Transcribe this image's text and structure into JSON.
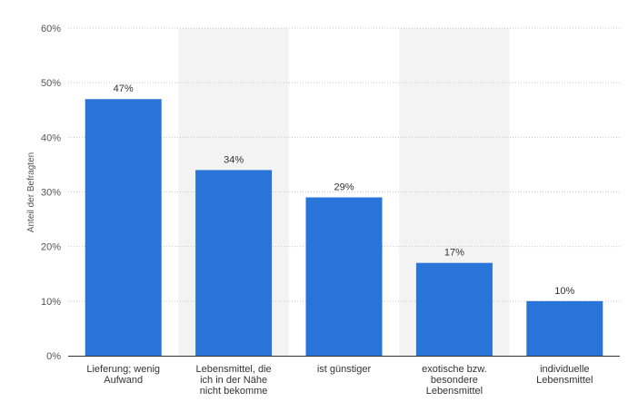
{
  "chart_data": {
    "type": "bar",
    "ylabel": "Anteil der Befragten",
    "xlabel": "",
    "ylim": [
      0,
      60
    ],
    "yticks": [
      0,
      10,
      20,
      30,
      40,
      50,
      60
    ],
    "tick_suffix": "%",
    "grid": true,
    "categories": [
      [
        "Lieferung; wenig",
        "Aufwand"
      ],
      [
        "Lebensmittel, die",
        "ich in der Nähe",
        "nicht bekomme"
      ],
      [
        "ist günstiger"
      ],
      [
        "exotische bzw.",
        "besondere",
        "Lebensmittel"
      ],
      [
        "individuelle",
        "Lebensmittel"
      ]
    ],
    "values": [
      47,
      34,
      29,
      17,
      10
    ],
    "value_labels": [
      "47%",
      "34%",
      "29%",
      "17%",
      "10%"
    ]
  },
  "colors": {
    "bar": "#2874d8",
    "band": "#f3f3f3",
    "grid": "#c8c8c8",
    "axis": "#333333"
  }
}
